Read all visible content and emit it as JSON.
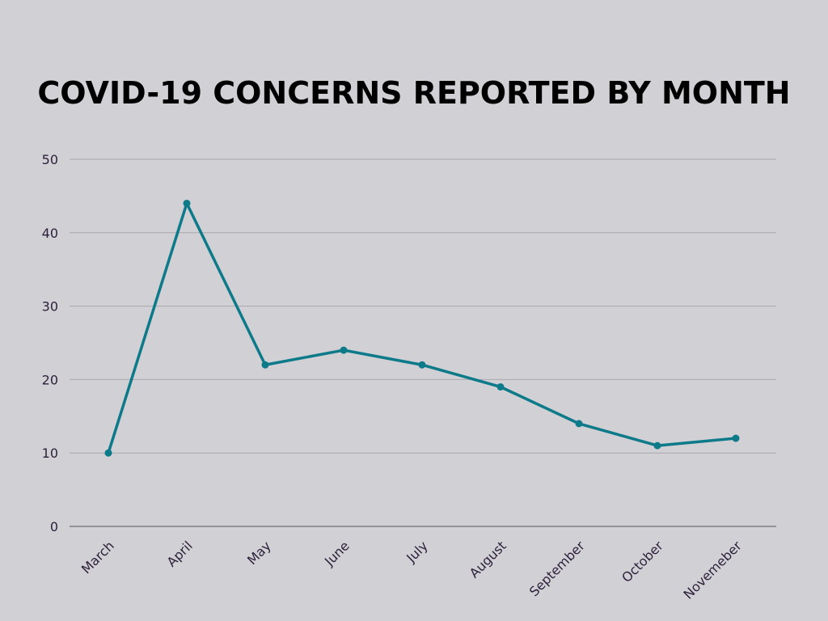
{
  "chart_data": {
    "type": "line",
    "title": "COVID-19 CONCERNS REPORTED BY MONTH",
    "categories": [
      "March",
      "April",
      "May",
      "June",
      "July",
      "August",
      "September",
      "October",
      "Novemeber"
    ],
    "series": [
      {
        "values": [
          10,
          44,
          22,
          24,
          22,
          19,
          14,
          11,
          12
        ],
        "color": "#0d7a8a"
      }
    ],
    "yticks": [
      "0",
      "10",
      "20",
      "30",
      "40",
      "50"
    ],
    "ylim": [
      0,
      50
    ],
    "xlabel": "",
    "ylabel": "",
    "grid": true,
    "legend": "none",
    "colors": {
      "background": "#d1d0d5",
      "gridline": "#a9a8b0",
      "axis": "#6e6d75",
      "tick_text": "#2c1f3a",
      "line": "#0d7a8a"
    }
  }
}
